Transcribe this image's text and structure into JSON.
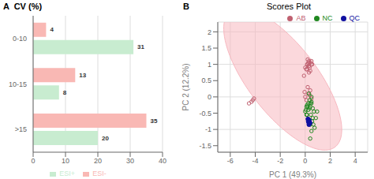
{
  "chart_data": [
    {
      "type": "bar",
      "orientation": "horizontal",
      "title": "A  CV (%)",
      "categories": [
        "0-10",
        "10-15",
        ">15"
      ],
      "series": [
        {
          "name": "ESI-",
          "color": "#f9b8b4",
          "values": [
            4,
            13,
            35
          ]
        },
        {
          "name": "ESI+",
          "color": "#c8ecd0",
          "values": [
            31,
            8,
            20
          ]
        }
      ],
      "xlim": [
        0,
        40
      ],
      "xticks": [
        0,
        10,
        20,
        30,
        40
      ],
      "grid": true,
      "legend": "bottom",
      "data_labels": true
    },
    {
      "type": "scatter",
      "title": "Scores Plot",
      "annotations": [
        "B"
      ],
      "x_label": "PC 1 (49.3%)",
      "y_label": "PC 2 (12.2%)",
      "xlim": [
        -7,
        5
      ],
      "ylim": [
        -1.7,
        2.3
      ],
      "xticks": [
        -6,
        -4,
        -2,
        0,
        2,
        4
      ],
      "yticks": [
        -1.5,
        -1,
        -0.5,
        0,
        0.5,
        1,
        1.5,
        2
      ],
      "grid": true,
      "legend": "upper right",
      "series": [
        {
          "name": "AB",
          "color": "#c06070",
          "marker": "hollow_circle",
          "x": [
            -4.5,
            -4.3,
            -4.2,
            -4.1,
            0.2,
            0.4,
            0.3,
            0.5,
            0.3,
            0.1,
            0.2,
            0.0,
            0.15,
            0.35,
            0.4,
            0.5,
            0.55,
            0.3,
            0.25,
            0.1,
            0.3,
            -0.1,
            0.0,
            0.5,
            0.2,
            0.4,
            -0.05,
            0.1,
            0.35,
            0.25
          ],
          "y": [
            -0.2,
            -0.15,
            -0.1,
            -0.05,
            1.0,
            1.05,
            1.1,
            1.0,
            0.95,
            0.85,
            1.15,
            0.9,
            1.0,
            0.9,
            0.8,
            1.1,
            1.0,
            0.95,
            1.05,
            0.85,
            0.75,
            0.65,
            0.0,
            -0.05,
            0.3,
            0.2,
            0.15,
            -0.1,
            0.05,
            0.1
          ]
        },
        {
          "name": "NC",
          "color": "#208820",
          "marker": "hollow_circle",
          "x": [
            0.05,
            0.15,
            0.25,
            0.35,
            0.45,
            0.55,
            0.65,
            0.75,
            0.85,
            0.95,
            0.4,
            0.25,
            0.15,
            0.35,
            0.5,
            0.1,
            0.0,
            0.3,
            0.5,
            0.4,
            0.6,
            0.7,
            0.2,
            0.4,
            0.5,
            0.3,
            0.6,
            0.1,
            0.4,
            0.5
          ],
          "y": [
            -0.4,
            -0.25,
            -0.2,
            -0.35,
            -0.55,
            -0.75,
            -0.85,
            -0.95,
            -0.65,
            -0.45,
            -0.3,
            -0.4,
            -0.55,
            -0.1,
            -0.2,
            -0.3,
            -0.45,
            -0.75,
            -1.05,
            -0.85,
            -0.65,
            -0.45,
            -0.3,
            -0.2,
            0.0,
            0.1,
            -0.35,
            -0.55,
            -1.28,
            -0.15
          ]
        },
        {
          "name": "QC",
          "color": "#1010a0",
          "marker": "circle",
          "x": [
            0.25,
            0.32,
            0.38,
            0.3,
            0.22,
            0.28
          ],
          "y": [
            -0.75,
            -0.72,
            -0.8,
            -0.85,
            -0.68,
            -0.78
          ]
        }
      ],
      "ellipse": {
        "x": -1.8,
        "y": 0.55,
        "width": 10.0,
        "height": 2.9,
        "angle": -20,
        "color": "#f8b8c0"
      }
    }
  ]
}
